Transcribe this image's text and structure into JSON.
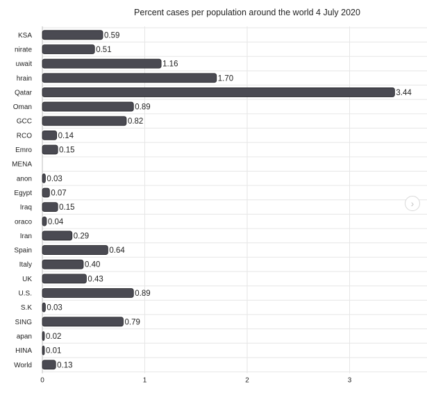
{
  "chart_data": {
    "type": "bar",
    "orientation": "horizontal",
    "title": "Percent cases per population around the world   4 July 2020",
    "categories": [
      "KSA",
      "nirate",
      "uwait",
      "hrain",
      "Qatar",
      "Oman",
      "GCC",
      "RCO",
      "Emro",
      "MENA",
      "anon",
      "Egypt",
      "Iraq",
      "oraco",
      "Iran",
      "Spain",
      "Italy",
      "UK",
      "U.S.",
      "S.K",
      "SING",
      "apan",
      "HINA",
      "World"
    ],
    "values": [
      0.59,
      0.51,
      1.16,
      1.7,
      3.44,
      0.89,
      0.82,
      0.14,
      0.15,
      null,
      0.03,
      0.07,
      0.15,
      0.04,
      0.29,
      0.64,
      0.4,
      0.43,
      0.89,
      0.03,
      0.79,
      0.02,
      0.01,
      0.13
    ],
    "value_labels": [
      "0.59",
      "0.51",
      "1.16",
      "1.70",
      "3.44",
      "0.89",
      "0.82",
      "0.14",
      "0.15",
      "",
      "0.03",
      "0.07",
      "0.15",
      "0.04",
      "0.29",
      "0.64",
      "0.40",
      "0.43",
      "0.89",
      "0.03",
      "0.79",
      "0.02",
      "0.01",
      "0.13"
    ],
    "xticks": [
      0,
      1,
      2,
      3
    ],
    "xlim": [
      0,
      3.7
    ],
    "xlabel": "",
    "ylabel": "",
    "grid": true,
    "legend": "none",
    "colors": {
      "bar": "#4a4a52",
      "bar_edge": "#222226",
      "grid": "#e6e6e6",
      "axis": "#bdbdbd",
      "text": "#222222"
    }
  },
  "ui": {
    "scroll_icon": "chevron-right-icon",
    "scroll_glyph": "›"
  }
}
